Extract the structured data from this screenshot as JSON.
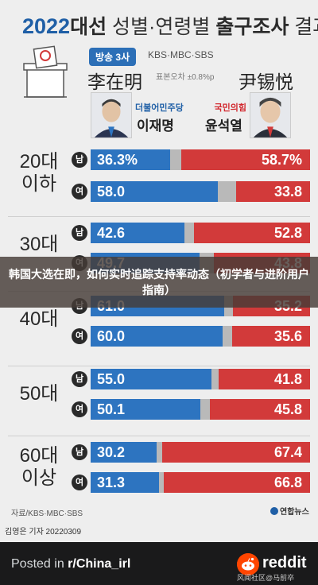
{
  "header": {
    "year": "2022",
    "title_bold": "대선",
    "title_light_1": "성별·연령별",
    "title_bold_2": "출구조사",
    "title_light_2": "결과",
    "badge": "방송 3사",
    "badge_source": "KBS·MBC·SBS",
    "margin_note": "표본오차 ±0.8%p"
  },
  "candidates": {
    "left": {
      "name_cn": "李在明",
      "party": "더불어민주당",
      "name_kr": "이재명",
      "color": "#2d74c0"
    },
    "right": {
      "name_cn": "尹锡悦",
      "party": "국민의힘",
      "name_kr": "윤석열",
      "color": "#d23a3a"
    }
  },
  "age_groups": [
    {
      "label_line1": "20대",
      "label_line2": "이하"
    },
    {
      "label_line1": "30대",
      "label_line2": ""
    },
    {
      "label_line1": "40대",
      "label_line2": ""
    },
    {
      "label_line1": "50대",
      "label_line2": ""
    },
    {
      "label_line1": "60대",
      "label_line2": "이상"
    }
  ],
  "gender_labels": {
    "male": "남",
    "female": "여"
  },
  "chart_data": {
    "type": "bar",
    "orientation": "horizontal",
    "stacked": true,
    "categories": [
      "20대 이하 남",
      "20대 이하 여",
      "30대 남",
      "30대 여",
      "40대 남",
      "40대 여",
      "50대 남",
      "50대 여",
      "60대 이상 남",
      "60대 이상 여"
    ],
    "series": [
      {
        "name": "이재명",
        "color": "#2d74c0",
        "values": [
          36.3,
          58.0,
          42.6,
          49.7,
          61.0,
          60.0,
          55.0,
          50.1,
          30.2,
          31.3
        ]
      },
      {
        "name": "윤석열",
        "color": "#d23a3a",
        "values": [
          58.7,
          33.8,
          52.8,
          43.8,
          35.2,
          35.6,
          41.8,
          45.8,
          67.4,
          66.8
        ]
      }
    ],
    "value_labels": {
      "left": [
        "36.3%",
        "58.0",
        "42.6",
        "49.7",
        "61.0",
        "60.0",
        "55.0",
        "50.1",
        "30.2",
        "31.3"
      ],
      "right": [
        "58.7%",
        "33.8",
        "52.8",
        "43.8",
        "35.2",
        "35.6",
        "41.8",
        "45.8",
        "67.4",
        "66.8"
      ]
    },
    "xlim": [
      0,
      100
    ],
    "other_color": "#b9b9b9"
  },
  "footer_note": {
    "source": "자료/KBS·MBC·SBS",
    "reporter": "김영은 기자  20220309",
    "agency": "연합뉴스"
  },
  "overlay": {
    "text": "韩国大选在即，如何实时追踪支持率动态（初学者与进阶用户指南）"
  },
  "reddit_footer": {
    "posted_prefix": "Posted in",
    "subreddit": "r/China_irl",
    "brand": "reddit",
    "watermark": "风闻社区@马前卒"
  }
}
